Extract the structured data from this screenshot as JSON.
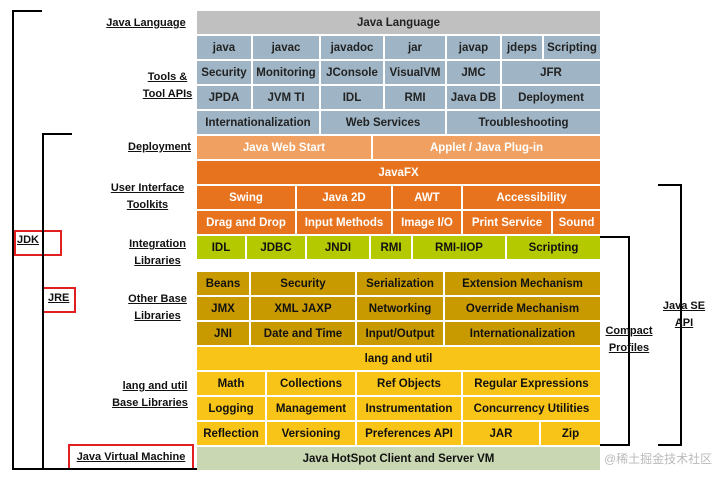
{
  "left_labels": {
    "java_language": "Java Language",
    "tools_1": "Tools &",
    "tools_2": "Tool APIs",
    "deployment": "Deployment",
    "ui_1": "User Interface",
    "ui_2": "Toolkits",
    "integration_1": "Integration",
    "integration_2": "Libraries",
    "other_base_1": "Other Base",
    "other_base_2": "Libraries",
    "lang_util_1": "lang and util",
    "lang_util_2": "Base Libraries",
    "jvm": "Java Virtual Machine"
  },
  "brackets": {
    "jdk": "JDK",
    "jre": "JRE",
    "compact_1": "Compact",
    "compact_2": "Profiles",
    "javase_1": "Java SE",
    "javase_2": "API"
  },
  "rows": {
    "language": [
      "Java Language"
    ],
    "tools1": [
      "java",
      "javac",
      "javadoc",
      "jar",
      "javap",
      "jdeps",
      "Scripting"
    ],
    "tools2": [
      "Security",
      "Monitoring",
      "JConsole",
      "VisualVM",
      "JMC",
      "JFR"
    ],
    "tools3": [
      "JPDA",
      "JVM TI",
      "IDL",
      "RMI",
      "Java DB",
      "Deployment"
    ],
    "tools4": [
      "Internationalization",
      "Web Services",
      "Troubleshooting"
    ],
    "deploy": [
      "Java Web Start",
      "Applet / Java Plug-in"
    ],
    "javafx": [
      "JavaFX"
    ],
    "ui1": [
      "Swing",
      "Java 2D",
      "AWT",
      "Accessibility"
    ],
    "ui2": [
      "Drag and Drop",
      "Input Methods",
      "Image I/O",
      "Print Service",
      "Sound"
    ],
    "integ": [
      "IDL",
      "JDBC",
      "JNDI",
      "RMI",
      "RMI-IIOP",
      "Scripting"
    ],
    "other1": [
      "Beans",
      "Security",
      "Serialization",
      "Extension Mechanism"
    ],
    "other2": [
      "JMX",
      "XML JAXP",
      "Networking",
      "Override Mechanism"
    ],
    "other3": [
      "JNI",
      "Date and Time",
      "Input/Output",
      "Internationalization"
    ],
    "langutil": [
      "lang and util"
    ],
    "base1": [
      "Math",
      "Collections",
      "Ref Objects",
      "Regular Expressions"
    ],
    "base2": [
      "Logging",
      "Management",
      "Instrumentation",
      "Concurrency Utilities"
    ],
    "base3": [
      "Reflection",
      "Versioning",
      "Preferences API",
      "JAR",
      "Zip"
    ],
    "jvm": [
      "Java HotSpot Client and Server VM"
    ]
  },
  "watermark": "@稀土掘金技术社区"
}
